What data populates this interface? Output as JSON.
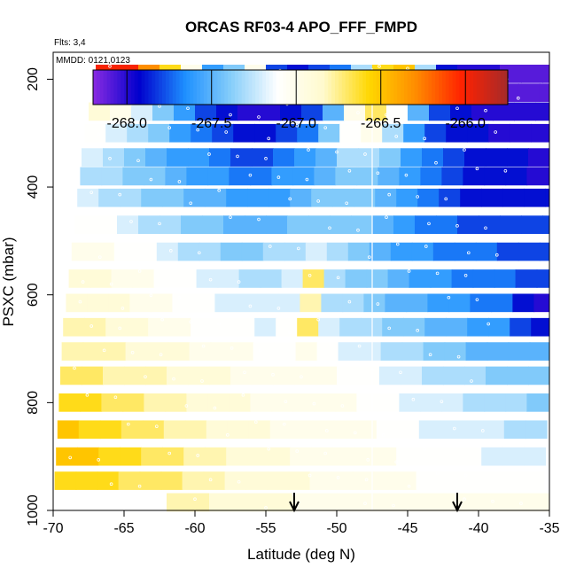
{
  "chart_data": {
    "type": "heatmap",
    "title": "ORCAS RF03-4 APO_FFF_FMPD",
    "annotations": {
      "flights": "Flts: 3,4",
      "dates": "MMDD: 0121,0123"
    },
    "xlabel": "Latitude (deg N)",
    "ylabel": "PSXC (mbar)",
    "xlim": [
      -70,
      -35
    ],
    "ylim": [
      1000,
      150
    ],
    "x_ticks": [
      -70,
      -65,
      -60,
      -55,
      -50,
      -45,
      -40,
      -35
    ],
    "x_tick_labels": [
      "-70",
      "-65",
      "-60",
      "-55",
      "-50",
      "-45",
      "-40",
      "-35"
    ],
    "y_ticks": [
      200,
      400,
      600,
      800,
      1000
    ],
    "y_tick_labels": [
      "200",
      "400",
      "600",
      "800",
      "1000"
    ],
    "colorbar": {
      "range": [
        -268.2,
        -265.75
      ],
      "ticks": [
        -268.0,
        -267.5,
        -267.0,
        -266.5,
        -266.0
      ],
      "tick_labels": [
        "-268.0",
        "-267.5",
        "-267.0",
        "-266.5",
        "-266.0"
      ],
      "colors": [
        "#8a2be2",
        "#0000cd",
        "#1e90ff",
        "#87cefa",
        "#ffffff",
        "#fffacd",
        "#ffd700",
        "#ff8c00",
        "#ff2200",
        "#a52a2a"
      ]
    },
    "markers": [
      {
        "type": "down-arrow",
        "lat": -53.0
      },
      {
        "type": "down-arrow",
        "lat": -41.5
      }
    ],
    "vertical_line_lat": -47.5,
    "layers": [
      {
        "p": 190,
        "lat_start": -67.0,
        "values": [
          -266.0,
          -266.0,
          -266.3,
          -266.6,
          -267.0,
          -267.6,
          -267.4,
          -267.0,
          -267.8,
          -267.9,
          -267.8,
          -267.7,
          -267.3,
          -266.6,
          -266.5,
          -267.3,
          -267.9,
          -268.0,
          -268.0,
          -268.1,
          -268.1,
          -268.1,
          -268.2
        ]
      },
      {
        "p": 225,
        "lat_start": -67.2,
        "values": [
          -266.6,
          -266.7,
          -266.9,
          -267.1,
          -267.4,
          -267.7,
          -268.0,
          -268.0,
          -268.0,
          -267.9,
          -267.8,
          -267.6,
          -267.0,
          -266.6,
          -267.0,
          -267.5,
          -267.8,
          -268.0,
          -268.0,
          -268.1,
          -268.1,
          -268.1,
          -268.1
        ]
      },
      {
        "p": 260,
        "lat_start": -67.5,
        "values": [
          -266.9,
          -267.0,
          -267.2,
          -267.4,
          -267.6,
          -267.8,
          -267.9,
          -268.0,
          -268.0,
          -267.9,
          -267.8,
          -267.5,
          -267.0,
          -266.7,
          -267.1,
          -267.5,
          -267.8,
          -267.9,
          -268.0,
          -268.0,
          -268.0,
          -268.0,
          -268.0
        ]
      },
      {
        "p": 300,
        "lat_start": -67.8,
        "values": [
          -267.1,
          -267.2,
          -267.3,
          -267.4,
          -267.6,
          -267.7,
          -267.8,
          -267.9,
          -267.9,
          -267.8,
          -267.7,
          -267.4,
          -267.1,
          -267.0,
          -267.3,
          -267.6,
          -267.8,
          -267.9,
          -267.9,
          -268.0,
          -268.0,
          -268.0,
          -268.0
        ]
      },
      {
        "p": 345,
        "lat_start": -68.0,
        "values": [
          -267.2,
          -267.3,
          -267.4,
          -267.5,
          -267.6,
          -267.6,
          -267.7,
          -267.8,
          -267.8,
          -267.7,
          -267.6,
          -267.5,
          -267.3,
          -267.3,
          -267.4,
          -267.6,
          -267.7,
          -267.8,
          -267.9,
          -267.9,
          -267.9,
          -268.0,
          -268.0
        ]
      },
      {
        "p": 380,
        "lat_start": -68.1,
        "values": [
          -267.3,
          -267.3,
          -267.4,
          -267.4,
          -267.5,
          -267.6,
          -267.6,
          -267.7,
          -267.7,
          -267.6,
          -267.6,
          -267.5,
          -267.4,
          -267.4,
          -267.5,
          -267.6,
          -267.7,
          -267.8,
          -267.9,
          -267.9,
          -267.9,
          -268.0,
          -268.0
        ]
      },
      {
        "p": 420,
        "lat_start": -68.3,
        "values": [
          -267.2,
          -267.3,
          -267.3,
          -267.4,
          -267.4,
          -267.5,
          -267.5,
          -267.6,
          -267.6,
          -267.6,
          -267.5,
          -267.4,
          -267.4,
          -267.4,
          -267.5,
          -267.6,
          -267.7,
          -267.8,
          -267.9,
          -267.9,
          -267.9,
          -267.9,
          -267.9
        ]
      },
      {
        "p": 470,
        "lat_start": -68.5,
        "values": [
          -267.1,
          -267.1,
          -267.2,
          -267.3,
          -267.3,
          -267.4,
          -267.4,
          -267.5,
          -267.5,
          -267.5,
          -267.4,
          -267.4,
          -267.4,
          -267.4,
          -267.5,
          -267.6,
          -267.7,
          -267.7,
          -267.8,
          -267.8,
          -267.8,
          -267.8,
          -267.8
        ]
      },
      {
        "p": 520,
        "lat_start": -68.7,
        "values": [
          -267.0,
          -267.0,
          -267.1,
          -267.1,
          -267.2,
          -267.3,
          -267.3,
          -267.4,
          -267.4,
          -267.3,
          -267.3,
          -267.2,
          -267.3,
          -267.4,
          -267.5,
          -267.6,
          -267.6,
          -267.7,
          -267.7,
          -267.7,
          -267.8,
          -267.8,
          -267.8
        ]
      },
      {
        "p": 570,
        "lat_start": -68.9,
        "values": [
          -266.9,
          -266.9,
          -267.0,
          -267.0,
          -267.1,
          -267.1,
          -267.2,
          -267.2,
          -267.3,
          -267.3,
          -267.2,
          -266.7,
          -267.3,
          -267.4,
          -267.4,
          -267.5,
          -267.6,
          -267.6,
          -267.7,
          -267.7,
          -267.7,
          -267.8,
          -267.8
        ]
      },
      {
        "p": 615,
        "lat_start": -69.1,
        "values": [
          -266.9,
          -266.9,
          -266.9,
          -267.0,
          -267.0,
          -267.1,
          -267.1,
          -267.2,
          -267.2,
          -267.2,
          -267.2,
          -266.8,
          -267.3,
          -267.3,
          -267.4,
          -267.5,
          -267.5,
          -267.6,
          -267.6,
          -267.7,
          -267.7,
          -267.9,
          -268.0
        ]
      },
      {
        "p": 660,
        "lat_start": -69.3,
        "values": [
          -266.8,
          -266.8,
          -266.9,
          -266.9,
          -267.0,
          -267.0,
          -267.1,
          -267.1,
          -267.1,
          -267.2,
          -267.1,
          -266.7,
          -267.2,
          -267.3,
          -267.3,
          -267.4,
          -267.4,
          -267.5,
          -267.5,
          -267.6,
          -267.6,
          -267.8,
          -267.9
        ]
      },
      {
        "p": 705,
        "lat_start": -69.4,
        "values": [
          -266.8,
          -266.8,
          -266.8,
          -266.9,
          -266.9,
          -266.9,
          -267.0,
          -267.0,
          -267.0,
          -267.1,
          -267.1,
          -267.0,
          -267.1,
          -267.2,
          -267.2,
          -267.3,
          -267.3,
          -267.4,
          -267.4,
          -267.5,
          -267.5,
          -267.5,
          -267.5
        ]
      },
      {
        "p": 750,
        "lat_start": -69.5,
        "values": [
          -266.7,
          -266.7,
          -266.8,
          -266.8,
          -266.8,
          -266.9,
          -266.9,
          -266.9,
          -267.0,
          -267.0,
          -267.0,
          -267.0,
          -267.0,
          -267.1,
          -267.1,
          -267.2,
          -267.2,
          -267.3,
          -267.3,
          -267.3,
          -267.4,
          -267.4,
          -267.4
        ]
      },
      {
        "p": 800,
        "lat_start": -69.6,
        "values": [
          -266.6,
          -266.6,
          -266.7,
          -266.7,
          -266.8,
          -266.8,
          -266.9,
          -266.9,
          -266.9,
          -267.0,
          -267.0,
          -267.0,
          -267.0,
          -267.0,
          -267.1,
          -267.1,
          -267.2,
          -267.2,
          -267.2,
          -267.3,
          -267.3,
          -267.3,
          -267.4
        ]
      },
      {
        "p": 850,
        "lat_start": -69.7,
        "values": [
          -266.5,
          -266.6,
          -266.6,
          -266.7,
          -266.7,
          -266.8,
          -266.8,
          -266.9,
          -266.9,
          -266.9,
          -267.0,
          -267.0,
          -267.0,
          -267.0,
          -267.0,
          -267.1,
          -267.1,
          -267.2,
          -267.2,
          -267.2,
          -267.2,
          -267.3,
          -267.3
        ]
      },
      {
        "p": 900,
        "lat_start": -69.8,
        "values": [
          -266.5,
          -266.5,
          -266.6,
          -266.6,
          -266.7,
          -266.7,
          -266.8,
          -266.8,
          -266.9,
          -266.9,
          -266.9,
          -267.0,
          -267.0,
          -267.0,
          -267.0,
          -267.0,
          -267.1,
          -267.1,
          -267.1,
          -267.1,
          -267.2,
          -267.2,
          -267.2
        ]
      },
      {
        "p": 945,
        "lat_start": -69.9,
        "values": [
          -266.6,
          -266.6,
          -266.6,
          -266.7,
          -266.7,
          -266.7,
          -266.8,
          -266.8,
          -266.9,
          -266.9,
          -266.9,
          -266.9,
          -267.0,
          -267.0,
          -267.0,
          -267.0,
          -267.0,
          -267.1,
          -267.1,
          -267.1,
          -267.1,
          -267.1,
          -267.1
        ]
      },
      {
        "p": 985,
        "lat_start": -62.0,
        "values": [
          -266.8,
          -266.8,
          -266.9,
          -266.9,
          -266.9,
          -266.9,
          -267.0,
          -267.0,
          -267.0,
          -267.0,
          -267.0,
          -267.0,
          -267.0,
          -267.0,
          -267.0,
          -267.0,
          -267.0,
          -267.0
        ]
      }
    ]
  }
}
